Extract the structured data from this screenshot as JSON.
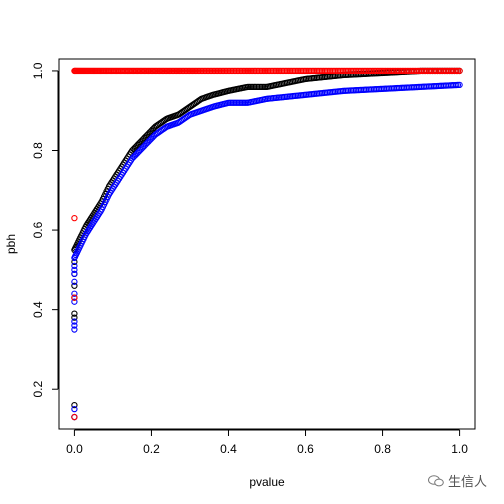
{
  "chart_data": {
    "type": "scatter",
    "title": "",
    "xlabel": "pvalue",
    "ylabel": "pbh",
    "xlim": [
      -0.04,
      1.04
    ],
    "ylim": [
      0.1,
      1.03
    ],
    "xticks": [
      "0.0",
      "0.2",
      "0.4",
      "0.6",
      "0.8",
      "1.0"
    ],
    "yticks": [
      "0.2",
      "0.4",
      "0.6",
      "0.8",
      "1.0"
    ],
    "grid": false,
    "legend": "none",
    "marker": "open-circle",
    "series": [
      {
        "color": "#000000",
        "curve": [
          [
            0.0,
            0.55
          ],
          [
            0.01,
            0.57
          ],
          [
            0.02,
            0.59
          ],
          [
            0.03,
            0.61
          ],
          [
            0.05,
            0.64
          ],
          [
            0.07,
            0.67
          ],
          [
            0.09,
            0.71
          ],
          [
            0.11,
            0.74
          ],
          [
            0.13,
            0.77
          ],
          [
            0.15,
            0.8
          ],
          [
            0.18,
            0.83
          ],
          [
            0.21,
            0.86
          ],
          [
            0.24,
            0.88
          ],
          [
            0.27,
            0.89
          ],
          [
            0.3,
            0.91
          ],
          [
            0.33,
            0.93
          ],
          [
            0.36,
            0.94
          ],
          [
            0.4,
            0.95
          ],
          [
            0.45,
            0.96
          ],
          [
            0.5,
            0.96
          ],
          [
            0.55,
            0.97
          ],
          [
            0.6,
            0.98
          ],
          [
            0.65,
            0.985
          ],
          [
            0.7,
            0.99
          ],
          [
            0.8,
            0.995
          ],
          [
            0.9,
            1.0
          ],
          [
            1.0,
            1.0
          ]
        ],
        "outliers": [
          [
            0,
            0.13
          ],
          [
            0,
            0.16
          ],
          [
            0,
            0.38
          ],
          [
            0,
            0.39
          ],
          [
            0,
            0.43
          ],
          [
            0,
            0.46
          ],
          [
            0,
            0.49
          ],
          [
            0,
            0.52
          ]
        ]
      },
      {
        "color": "#0000ff",
        "curve": [
          [
            0.0,
            0.53
          ],
          [
            0.01,
            0.55
          ],
          [
            0.02,
            0.57
          ],
          [
            0.03,
            0.59
          ],
          [
            0.05,
            0.62
          ],
          [
            0.07,
            0.65
          ],
          [
            0.09,
            0.69
          ],
          [
            0.11,
            0.72
          ],
          [
            0.13,
            0.75
          ],
          [
            0.15,
            0.78
          ],
          [
            0.18,
            0.81
          ],
          [
            0.21,
            0.84
          ],
          [
            0.24,
            0.86
          ],
          [
            0.27,
            0.87
          ],
          [
            0.3,
            0.89
          ],
          [
            0.33,
            0.9
          ],
          [
            0.36,
            0.91
          ],
          [
            0.4,
            0.92
          ],
          [
            0.45,
            0.92
          ],
          [
            0.5,
            0.93
          ],
          [
            0.55,
            0.935
          ],
          [
            0.6,
            0.94
          ],
          [
            0.65,
            0.945
          ],
          [
            0.7,
            0.95
          ],
          [
            0.8,
            0.955
          ],
          [
            0.9,
            0.96
          ],
          [
            1.0,
            0.965
          ]
        ],
        "outliers": [
          [
            0,
            0.13
          ],
          [
            0,
            0.15
          ],
          [
            0,
            0.35
          ],
          [
            0,
            0.36
          ],
          [
            0,
            0.37
          ],
          [
            0,
            0.42
          ],
          [
            0,
            0.44
          ],
          [
            0,
            0.47
          ],
          [
            0,
            0.49
          ],
          [
            0,
            0.5
          ],
          [
            0,
            0.51
          ]
        ]
      },
      {
        "color": "#ff0000",
        "curve": [
          [
            0.0,
            1.0
          ],
          [
            0.2,
            1.0
          ],
          [
            0.4,
            1.0
          ],
          [
            0.6,
            1.0
          ],
          [
            0.8,
            1.0
          ],
          [
            1.0,
            1.0
          ]
        ],
        "outliers": [
          [
            0,
            0.63
          ],
          [
            0,
            0.43
          ],
          [
            0,
            0.13
          ]
        ]
      }
    ]
  },
  "watermark": {
    "text": "生信人",
    "icon": "wechat-icon"
  }
}
